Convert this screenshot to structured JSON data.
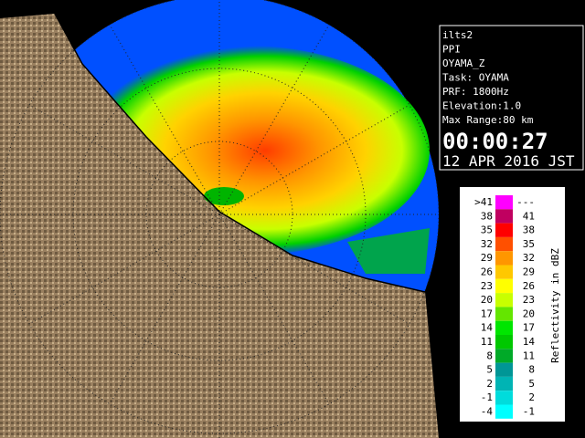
{
  "info": {
    "lines": [
      "ilts2",
      "PPI",
      "OYAMA_Z",
      "Task: OYAMA",
      "PRF: 1800Hz",
      "Elevation:1.0",
      "Max Range:80 km"
    ],
    "time": "00:00:27",
    "date": "12 APR 2016 JST"
  },
  "legend": {
    "title": "Reflectivity in dBZ",
    "rows": [
      {
        "low": ">41",
        "high": "---",
        "color": "#ff00ff"
      },
      {
        "low": "38",
        "high": "41",
        "color": "#c00060"
      },
      {
        "low": "35",
        "high": "38",
        "color": "#ff0000"
      },
      {
        "low": "32",
        "high": "35",
        "color": "#ff5000"
      },
      {
        "low": "29",
        "high": "32",
        "color": "#ff9600"
      },
      {
        "low": "26",
        "high": "29",
        "color": "#ffc800"
      },
      {
        "low": "23",
        "high": "26",
        "color": "#ffff00"
      },
      {
        "low": "20",
        "high": "23",
        "color": "#c8ff00"
      },
      {
        "low": "17",
        "high": "20",
        "color": "#64e600"
      },
      {
        "low": "14",
        "high": "17",
        "color": "#00e600"
      },
      {
        "low": "11",
        "high": "14",
        "color": "#00c800"
      },
      {
        "low": "8",
        "high": "11",
        "color": "#00aa28"
      },
      {
        "low": "5",
        "high": "8",
        "color": "#009696"
      },
      {
        "low": "2",
        "high": "5",
        "color": "#00b4b4"
      },
      {
        "low": "-1",
        "high": "2",
        "color": "#00dcdc"
      },
      {
        "low": "-4",
        "high": "-1",
        "color": "#00ffff"
      }
    ]
  }
}
